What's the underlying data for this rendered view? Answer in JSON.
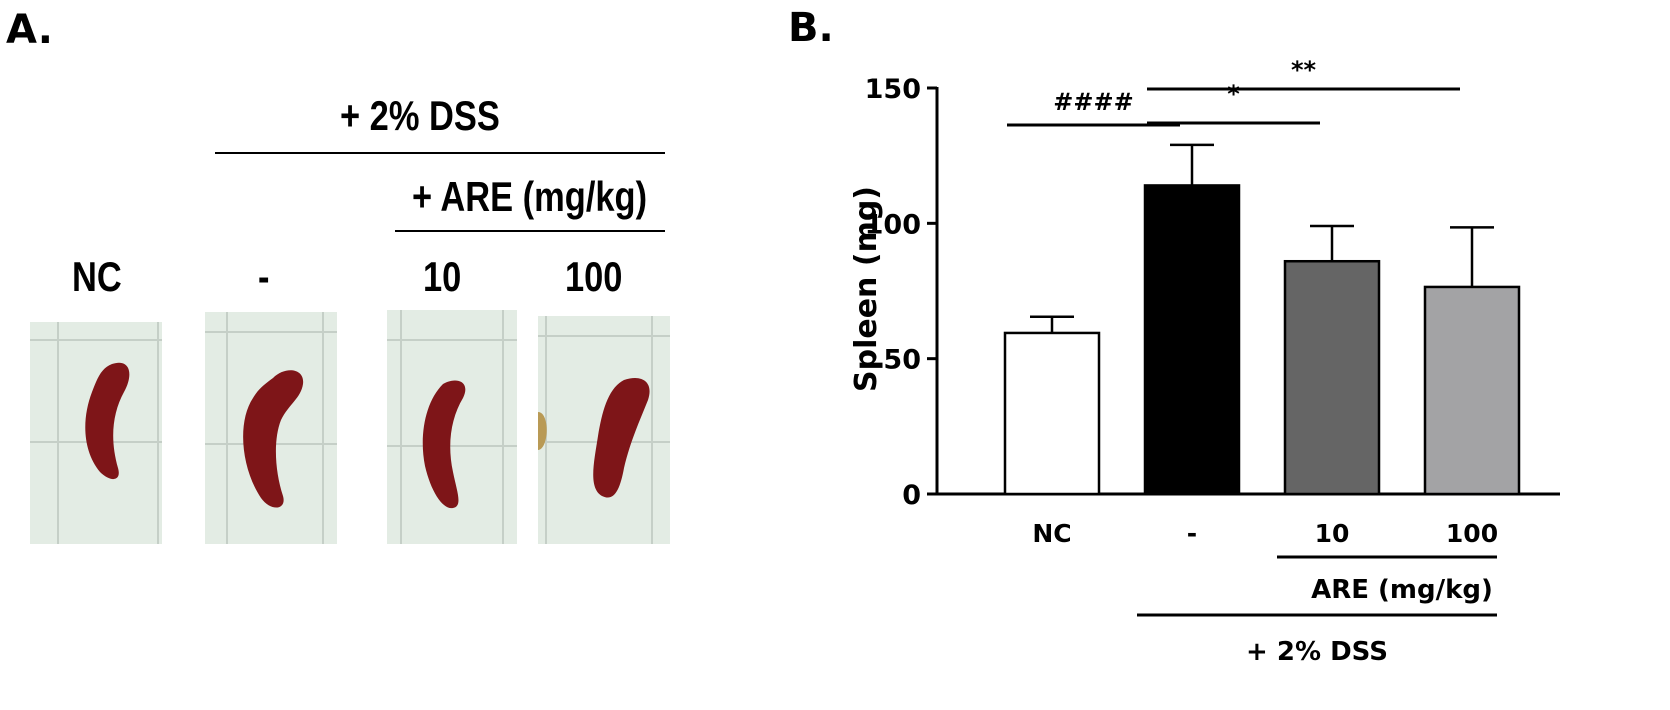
{
  "panel_a": {
    "label": "A.",
    "dss_header": "+ 2% DSS",
    "are_header": "+ ARE (mg/kg)",
    "groups": [
      {
        "label": "NC"
      },
      {
        "label": "-"
      },
      {
        "label": "10"
      },
      {
        "label": "100"
      }
    ],
    "colors": {
      "spleen": "#7e1518",
      "paper_bg": "#e3ece4",
      "grid": "#c5cfc7"
    }
  },
  "panel_b": {
    "label": "B."
  },
  "chart_data": {
    "type": "bar",
    "categories": [
      "NC",
      "-",
      "10",
      "100"
    ],
    "values": [
      59.5,
      114,
      86,
      76.5
    ],
    "errors": [
      6,
      15,
      13,
      22
    ],
    "bar_colors": [
      "#ffffff",
      "#000000",
      "#656565",
      "#a3a3a5"
    ],
    "ylabel": "Spleen (mg)",
    "ylim": [
      0,
      150
    ],
    "yticks": [
      0,
      50,
      100,
      150
    ],
    "ytick_labels": [
      "0",
      "50",
      "100",
      "150"
    ],
    "grid": false,
    "significance": [
      {
        "from": 0,
        "to": 1,
        "label": "####"
      },
      {
        "from": 1,
        "to": 2,
        "label": "*"
      },
      {
        "from": 1,
        "to": 3,
        "label": "**"
      }
    ],
    "group_labels": [
      {
        "label": "ARE (mg/kg)",
        "from": 2,
        "to": 3
      },
      {
        "label": "+ 2% DSS",
        "from": 1,
        "to": 3
      }
    ]
  }
}
